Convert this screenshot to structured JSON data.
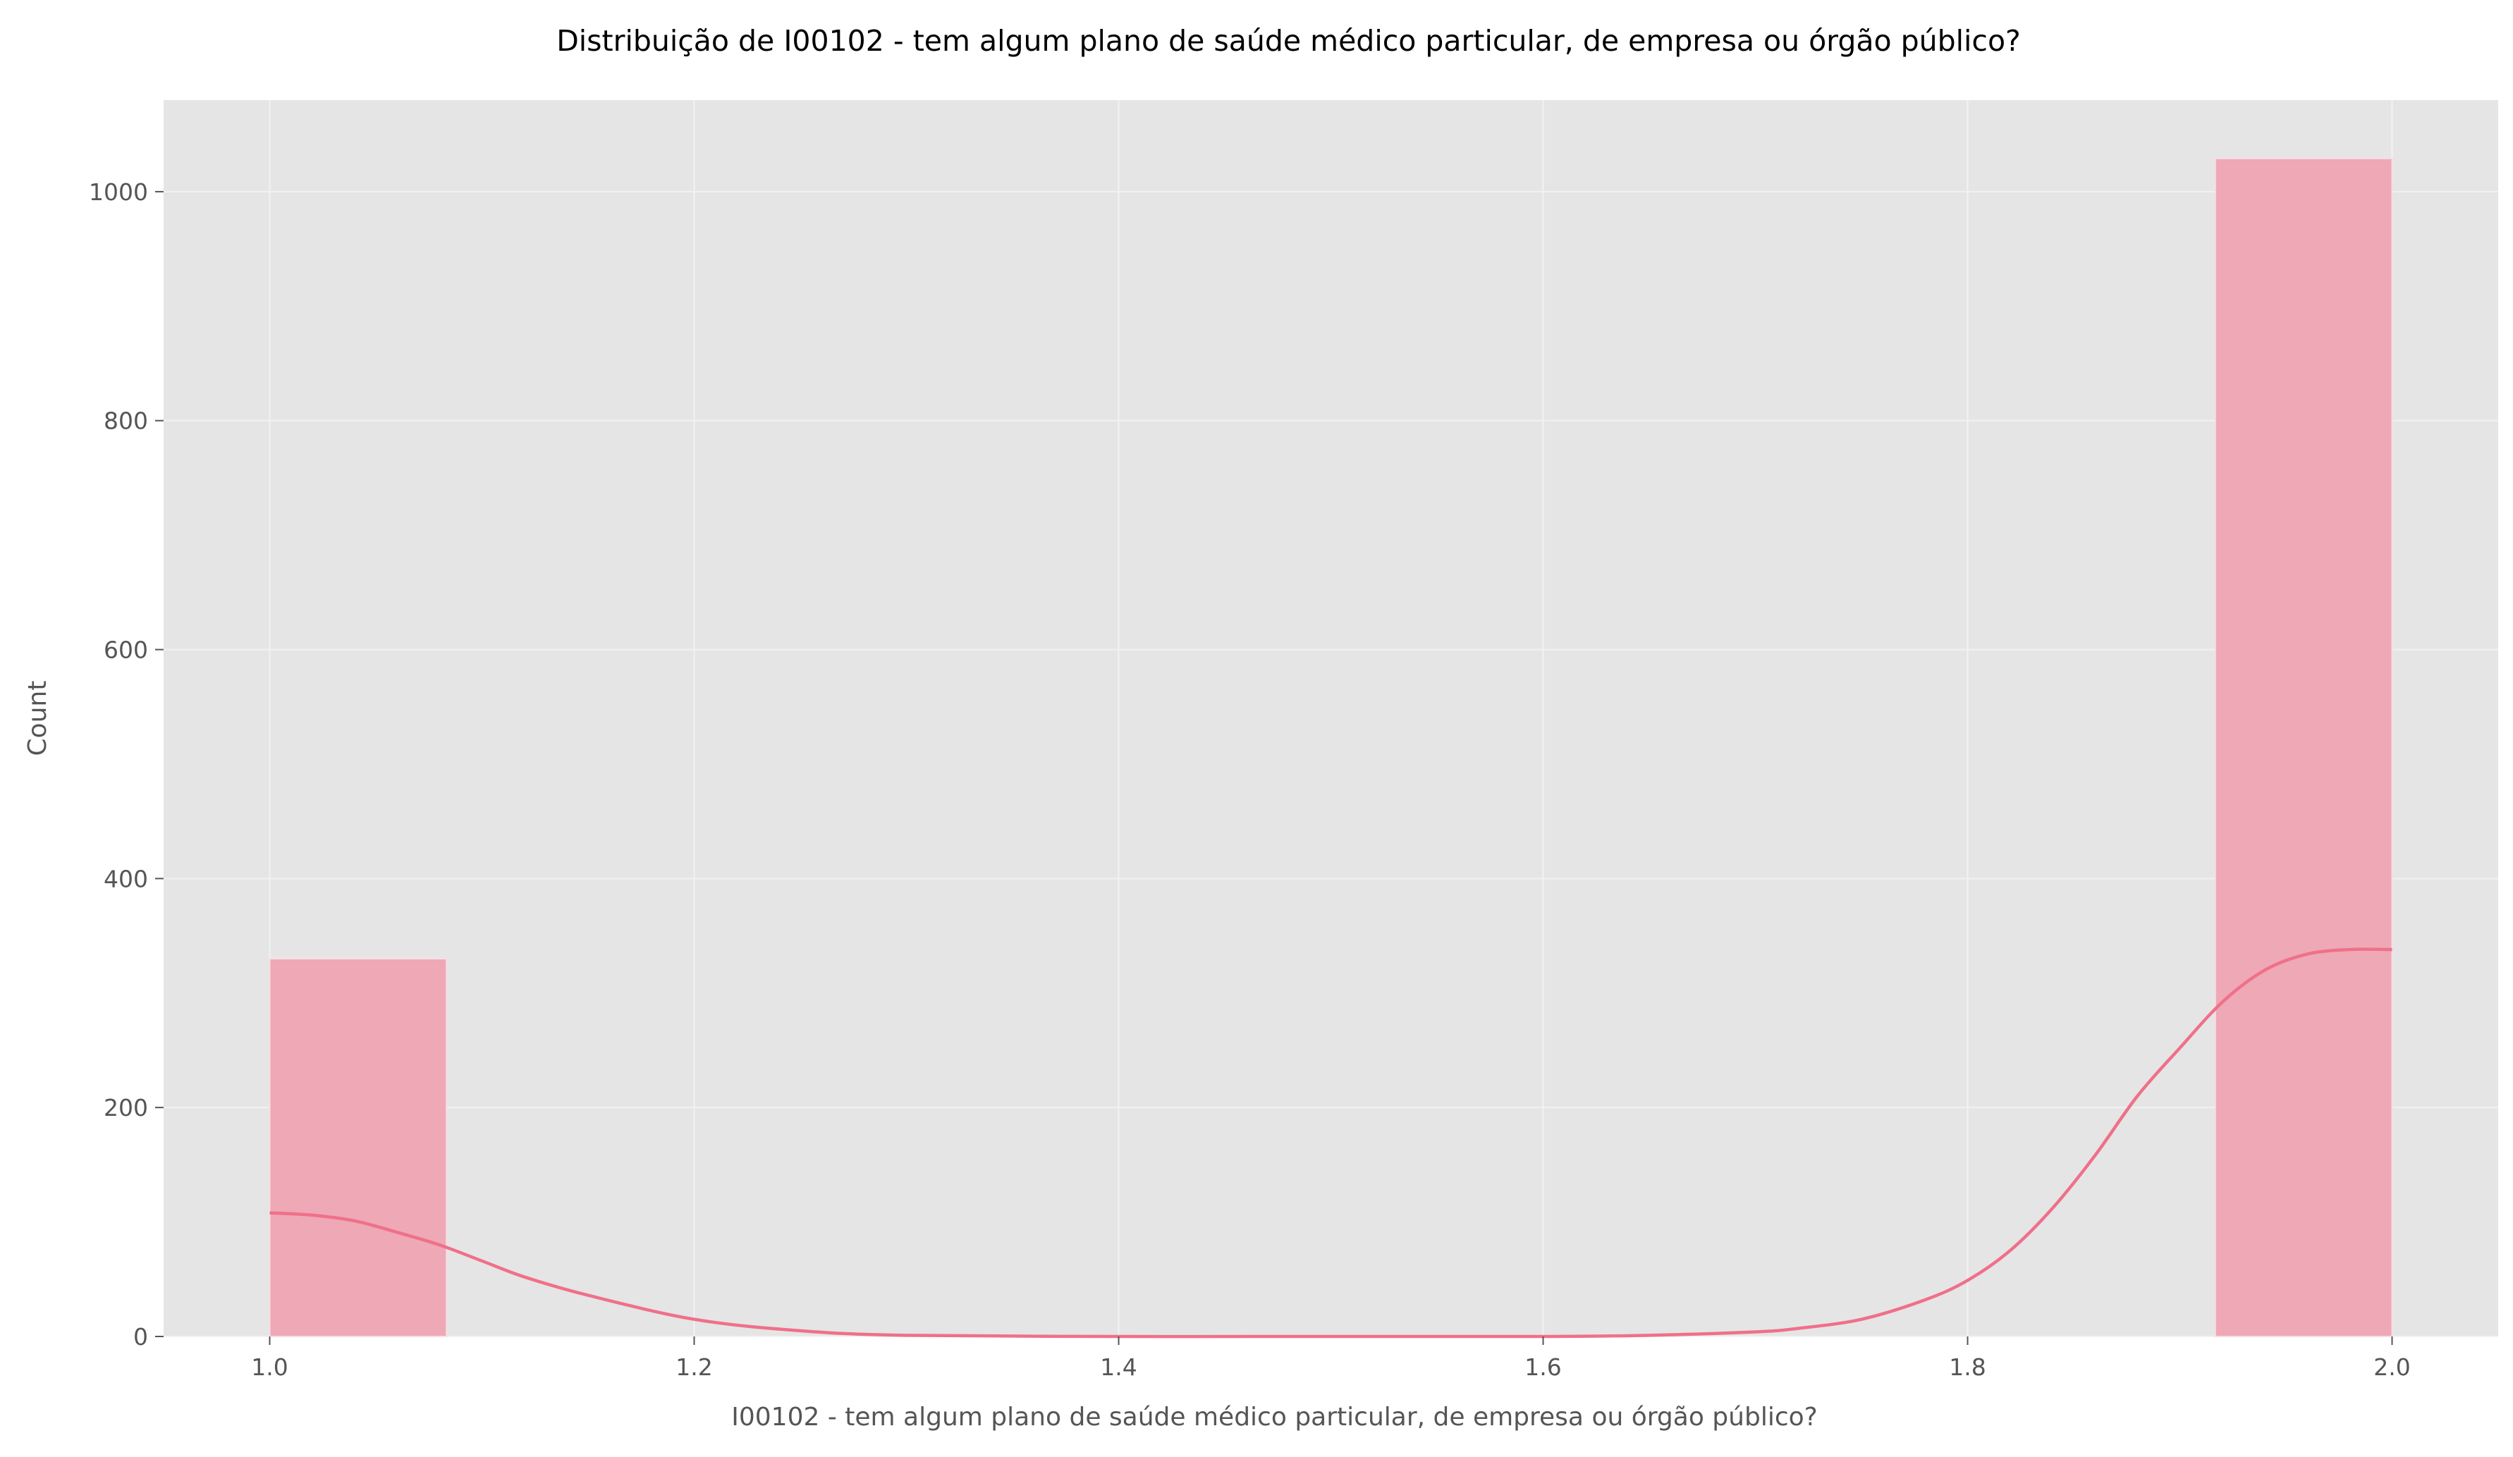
{
  "chart_data": {
    "type": "bar",
    "title": "Distribuição de I00102 - tem algum plano de saúde médico particular, de empresa ou órgão público?",
    "xlabel": "I00102 - tem algum plano de saúde médico particular, de empresa ou órgão público?",
    "ylabel": "Count",
    "xlim": [
      0.95,
      2.05
    ],
    "ylim": [
      0,
      1080
    ],
    "x_ticks": [
      "1.0",
      "1.2",
      "1.4",
      "1.6",
      "1.8",
      "2.0"
    ],
    "y_ticks": [
      "0",
      "200",
      "400",
      "600",
      "800",
      "1000"
    ],
    "grid": true,
    "legend": "none",
    "bins": [
      {
        "x0": 1.0,
        "x1": 1.0833,
        "count": 330
      },
      {
        "x0": 1.0833,
        "x1": 1.1667,
        "count": 0
      },
      {
        "x0": 1.1667,
        "x1": 1.25,
        "count": 0
      },
      {
        "x0": 1.25,
        "x1": 1.3333,
        "count": 0
      },
      {
        "x0": 1.3333,
        "x1": 1.4167,
        "count": 0
      },
      {
        "x0": 1.4167,
        "x1": 1.5,
        "count": 0
      },
      {
        "x0": 1.5,
        "x1": 1.5833,
        "count": 0
      },
      {
        "x0": 1.5833,
        "x1": 1.6667,
        "count": 0
      },
      {
        "x0": 1.6667,
        "x1": 1.75,
        "count": 0
      },
      {
        "x0": 1.75,
        "x1": 1.8333,
        "count": 0
      },
      {
        "x0": 1.8333,
        "x1": 1.9167,
        "count": 0
      },
      {
        "x0": 1.9167,
        "x1": 2.0,
        "count": 1029
      }
    ],
    "kde": {
      "x": [
        1.0,
        1.02,
        1.04,
        1.06,
        1.08,
        1.1,
        1.12,
        1.15,
        1.2,
        1.25,
        1.3,
        1.4,
        1.5,
        1.6,
        1.65,
        1.7,
        1.72,
        1.75,
        1.78,
        1.8,
        1.82,
        1.84,
        1.86,
        1.88,
        1.9,
        1.92,
        1.94,
        1.96,
        1.98,
        2.0
      ],
      "y": [
        108,
        106,
        101,
        91,
        80,
        66,
        52,
        36,
        15,
        5,
        1,
        0,
        0,
        0,
        1,
        4,
        7,
        15,
        32,
        49,
        75,
        112,
        158,
        210,
        252,
        292,
        320,
        334,
        338,
        338
      ]
    },
    "colors": {
      "bar_fill": "#eea8b6",
      "bar_edge": "#f7dfe4",
      "kde_line": "#f07089",
      "plot_bg": "#e5e5e5",
      "grid": "#f2f2f2",
      "text": "#555555",
      "title": "#000000"
    }
  }
}
